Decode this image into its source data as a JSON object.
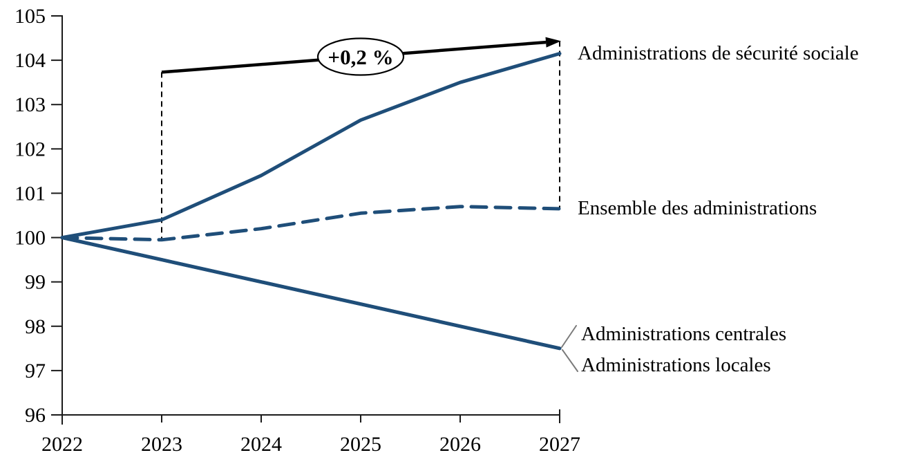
{
  "chart_data": {
    "type": "line",
    "title": "",
    "xlabel": "",
    "ylabel": "",
    "x": [
      2022,
      2023,
      2024,
      2025,
      2026,
      2027
    ],
    "xticks": [
      "2022",
      "2023",
      "2024",
      "2025",
      "2026",
      "2027"
    ],
    "yticks": [
      96,
      97,
      98,
      99,
      100,
      101,
      102,
      103,
      104,
      105
    ],
    "ylim": [
      96,
      105
    ],
    "grid": false,
    "legend_position": "right-of-line-annotations",
    "line_color": "#1f4e79",
    "series": [
      {
        "name": "Administrations de sécurité sociale",
        "values": [
          100,
          100.4,
          101.4,
          102.65,
          103.5,
          104.15
        ],
        "dash": false
      },
      {
        "name": "Ensemble des administrations",
        "values": [
          100,
          99.95,
          100.2,
          100.55,
          100.7,
          100.65
        ],
        "dash": true
      },
      {
        "name": "Administrations centrales",
        "values": [
          100,
          99.5,
          99.0,
          98.5,
          98.0,
          97.5
        ],
        "dash": false
      },
      {
        "name": "Administrations locales",
        "values": [
          100,
          99.5,
          99.0,
          98.5,
          98.0,
          97.5
        ],
        "dash": false
      }
    ],
    "annotation": {
      "label": "+0,2 %",
      "arrow": {
        "from": {
          "x": 2023,
          "y": 103.73
        },
        "to": {
          "x": 2027,
          "y": 104.43
        }
      },
      "guides": [
        {
          "x": 2023,
          "y_top": 103.73,
          "y_bottom": 99.97
        },
        {
          "x": 2027,
          "y_top": 104.43,
          "y_bottom": 100.67
        }
      ]
    }
  }
}
